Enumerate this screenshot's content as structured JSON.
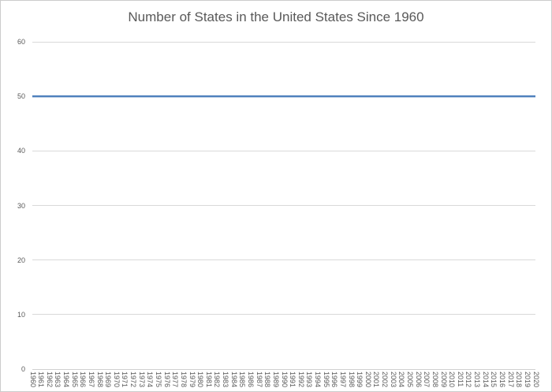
{
  "window": {
    "background": "#ffffff",
    "frame_border_color": "#cccccc"
  },
  "colors": {
    "series_line": "#4f81bd",
    "gridline": "#d9d9d9",
    "axis_line": "#d0d0d0",
    "tick_text": "#595959",
    "title_text": "#595959"
  },
  "chart_data": {
    "type": "line",
    "title": "Number of States in the United States Since 1960",
    "x": [
      1960,
      1961,
      1962,
      1963,
      1964,
      1965,
      1966,
      1967,
      1968,
      1969,
      1970,
      1971,
      1972,
      1973,
      1974,
      1975,
      1976,
      1977,
      1978,
      1979,
      1980,
      1981,
      1982,
      1983,
      1984,
      1985,
      1986,
      1987,
      1988,
      1989,
      1990,
      1991,
      1992,
      1993,
      1994,
      1995,
      1996,
      1997,
      1998,
      1999,
      2000,
      2001,
      2002,
      2003,
      2004,
      2005,
      2006,
      2007,
      2008,
      2009,
      2010,
      2011,
      2012,
      2013,
      2014,
      2015,
      2016,
      2017,
      2018,
      2019,
      2020
    ],
    "series": [
      {
        "values": [
          50,
          50,
          50,
          50,
          50,
          50,
          50,
          50,
          50,
          50,
          50,
          50,
          50,
          50,
          50,
          50,
          50,
          50,
          50,
          50,
          50,
          50,
          50,
          50,
          50,
          50,
          50,
          50,
          50,
          50,
          50,
          50,
          50,
          50,
          50,
          50,
          50,
          50,
          50,
          50,
          50,
          50,
          50,
          50,
          50,
          50,
          50,
          50,
          50,
          50,
          50,
          50,
          50,
          50,
          50,
          50,
          50,
          50,
          50,
          50,
          50
        ]
      }
    ],
    "xlabel": "",
    "ylabel": "",
    "ylim": [
      0,
      60
    ],
    "yticks": [
      0,
      10,
      20,
      30,
      40,
      50,
      60
    ],
    "grid": true,
    "legend": "none",
    "x_tick_rotation_deg": 90
  }
}
